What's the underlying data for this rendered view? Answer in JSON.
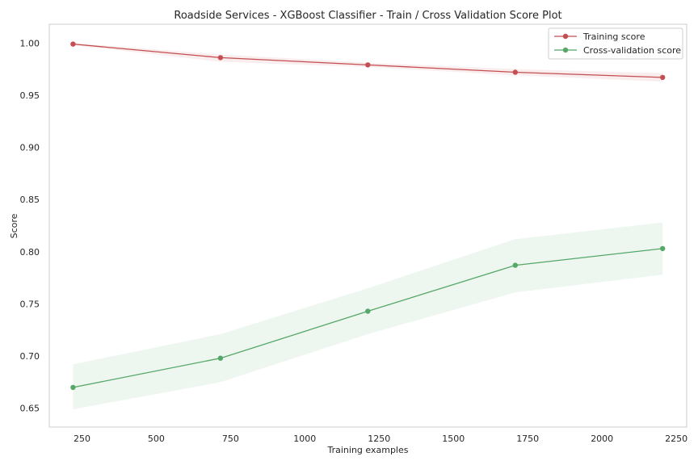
{
  "chart_data": {
    "type": "line",
    "title": "Roadside Services - XGBoost Classifier - Train / Cross Validation Score Plot",
    "xlabel": "Training examples",
    "ylabel": "Score",
    "xlim": [
      140,
      2285
    ],
    "ylim": [
      0.632,
      1.018
    ],
    "x_ticks": [
      250,
      500,
      750,
      1000,
      1250,
      1500,
      1750,
      2000,
      2250
    ],
    "y_ticks": [
      0.65,
      0.7,
      0.75,
      0.8,
      0.85,
      0.9,
      0.95,
      1.0
    ],
    "y_tick_labels": [
      "0.65",
      "0.70",
      "0.75",
      "0.80",
      "0.85",
      "0.90",
      "0.95",
      "1.00"
    ],
    "grid": false,
    "legend_position": "top-right",
    "x": [
      220,
      716,
      1212,
      1708,
      2204
    ],
    "series": [
      {
        "name": "Training score",
        "color": "#c44e52",
        "band_color": "#c44e52",
        "values": [
          0.999,
          0.986,
          0.979,
          0.972,
          0.967
        ],
        "lower": [
          0.998,
          0.982,
          0.977,
          0.969,
          0.963
        ],
        "upper": [
          1.0,
          0.989,
          0.981,
          0.975,
          0.971
        ]
      },
      {
        "name": "Cross-validation score",
        "color": "#55a868",
        "band_color": "#55a868",
        "values": [
          0.67,
          0.698,
          0.743,
          0.787,
          0.803
        ],
        "lower": [
          0.649,
          0.675,
          0.721,
          0.761,
          0.778
        ],
        "upper": [
          0.692,
          0.721,
          0.765,
          0.812,
          0.828
        ]
      }
    ]
  }
}
